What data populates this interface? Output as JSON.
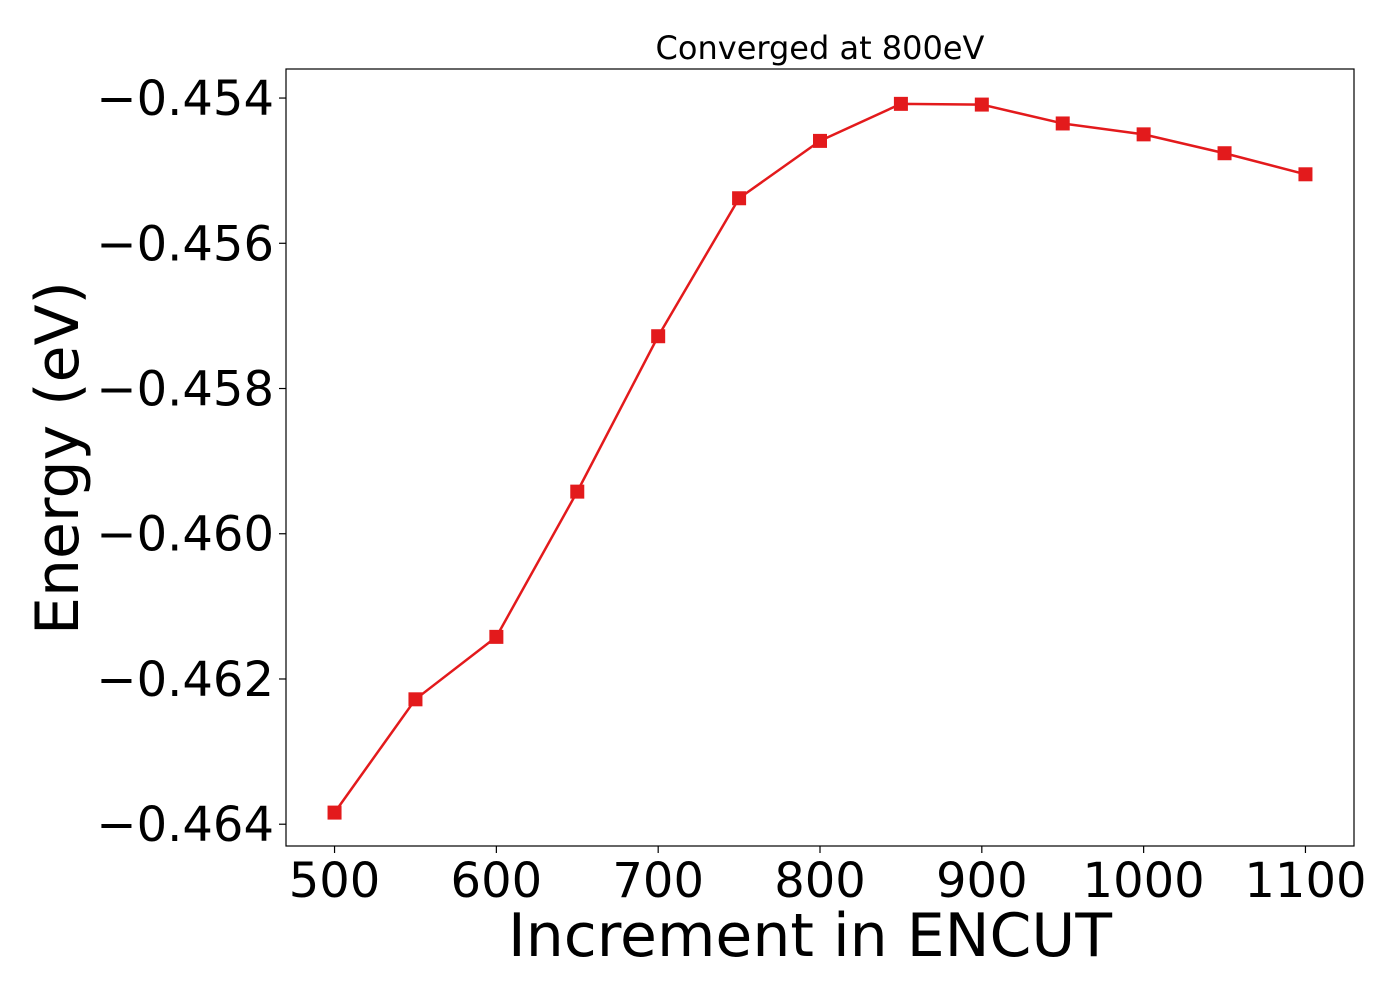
{
  "chart_data": {
    "type": "line",
    "title": "Converged at 800eV",
    "xlabel": "Increment in ENCUT",
    "ylabel": "Energy (eV)",
    "xlim": [
      470,
      1130
    ],
    "ylim": [
      -0.4643,
      -0.4536
    ],
    "xticks": [
      500,
      600,
      700,
      800,
      900,
      1000,
      1100
    ],
    "xtick_labels": [
      "500",
      "600",
      "700",
      "800",
      "900",
      "1000",
      "1100"
    ],
    "yticks": [
      -0.454,
      -0.456,
      -0.458,
      -0.46,
      -0.462,
      -0.464
    ],
    "ytick_labels": [
      "−0.454",
      "−0.456",
      "−0.458",
      "−0.460",
      "−0.462",
      "−0.464"
    ],
    "grid": false,
    "legend": "none",
    "color": "#e31a1c",
    "marker": "square-icon",
    "series": [
      {
        "x": [
          500,
          550,
          600,
          650,
          700,
          750,
          800,
          850,
          900,
          950,
          1000,
          1050,
          1100
        ],
        "y": [
          -0.46384,
          -0.46228,
          -0.46142,
          -0.45942,
          -0.45728,
          -0.45538,
          -0.45459,
          -0.45408,
          -0.45409,
          -0.45435,
          -0.4545,
          -0.45476,
          -0.45505
        ]
      }
    ]
  }
}
